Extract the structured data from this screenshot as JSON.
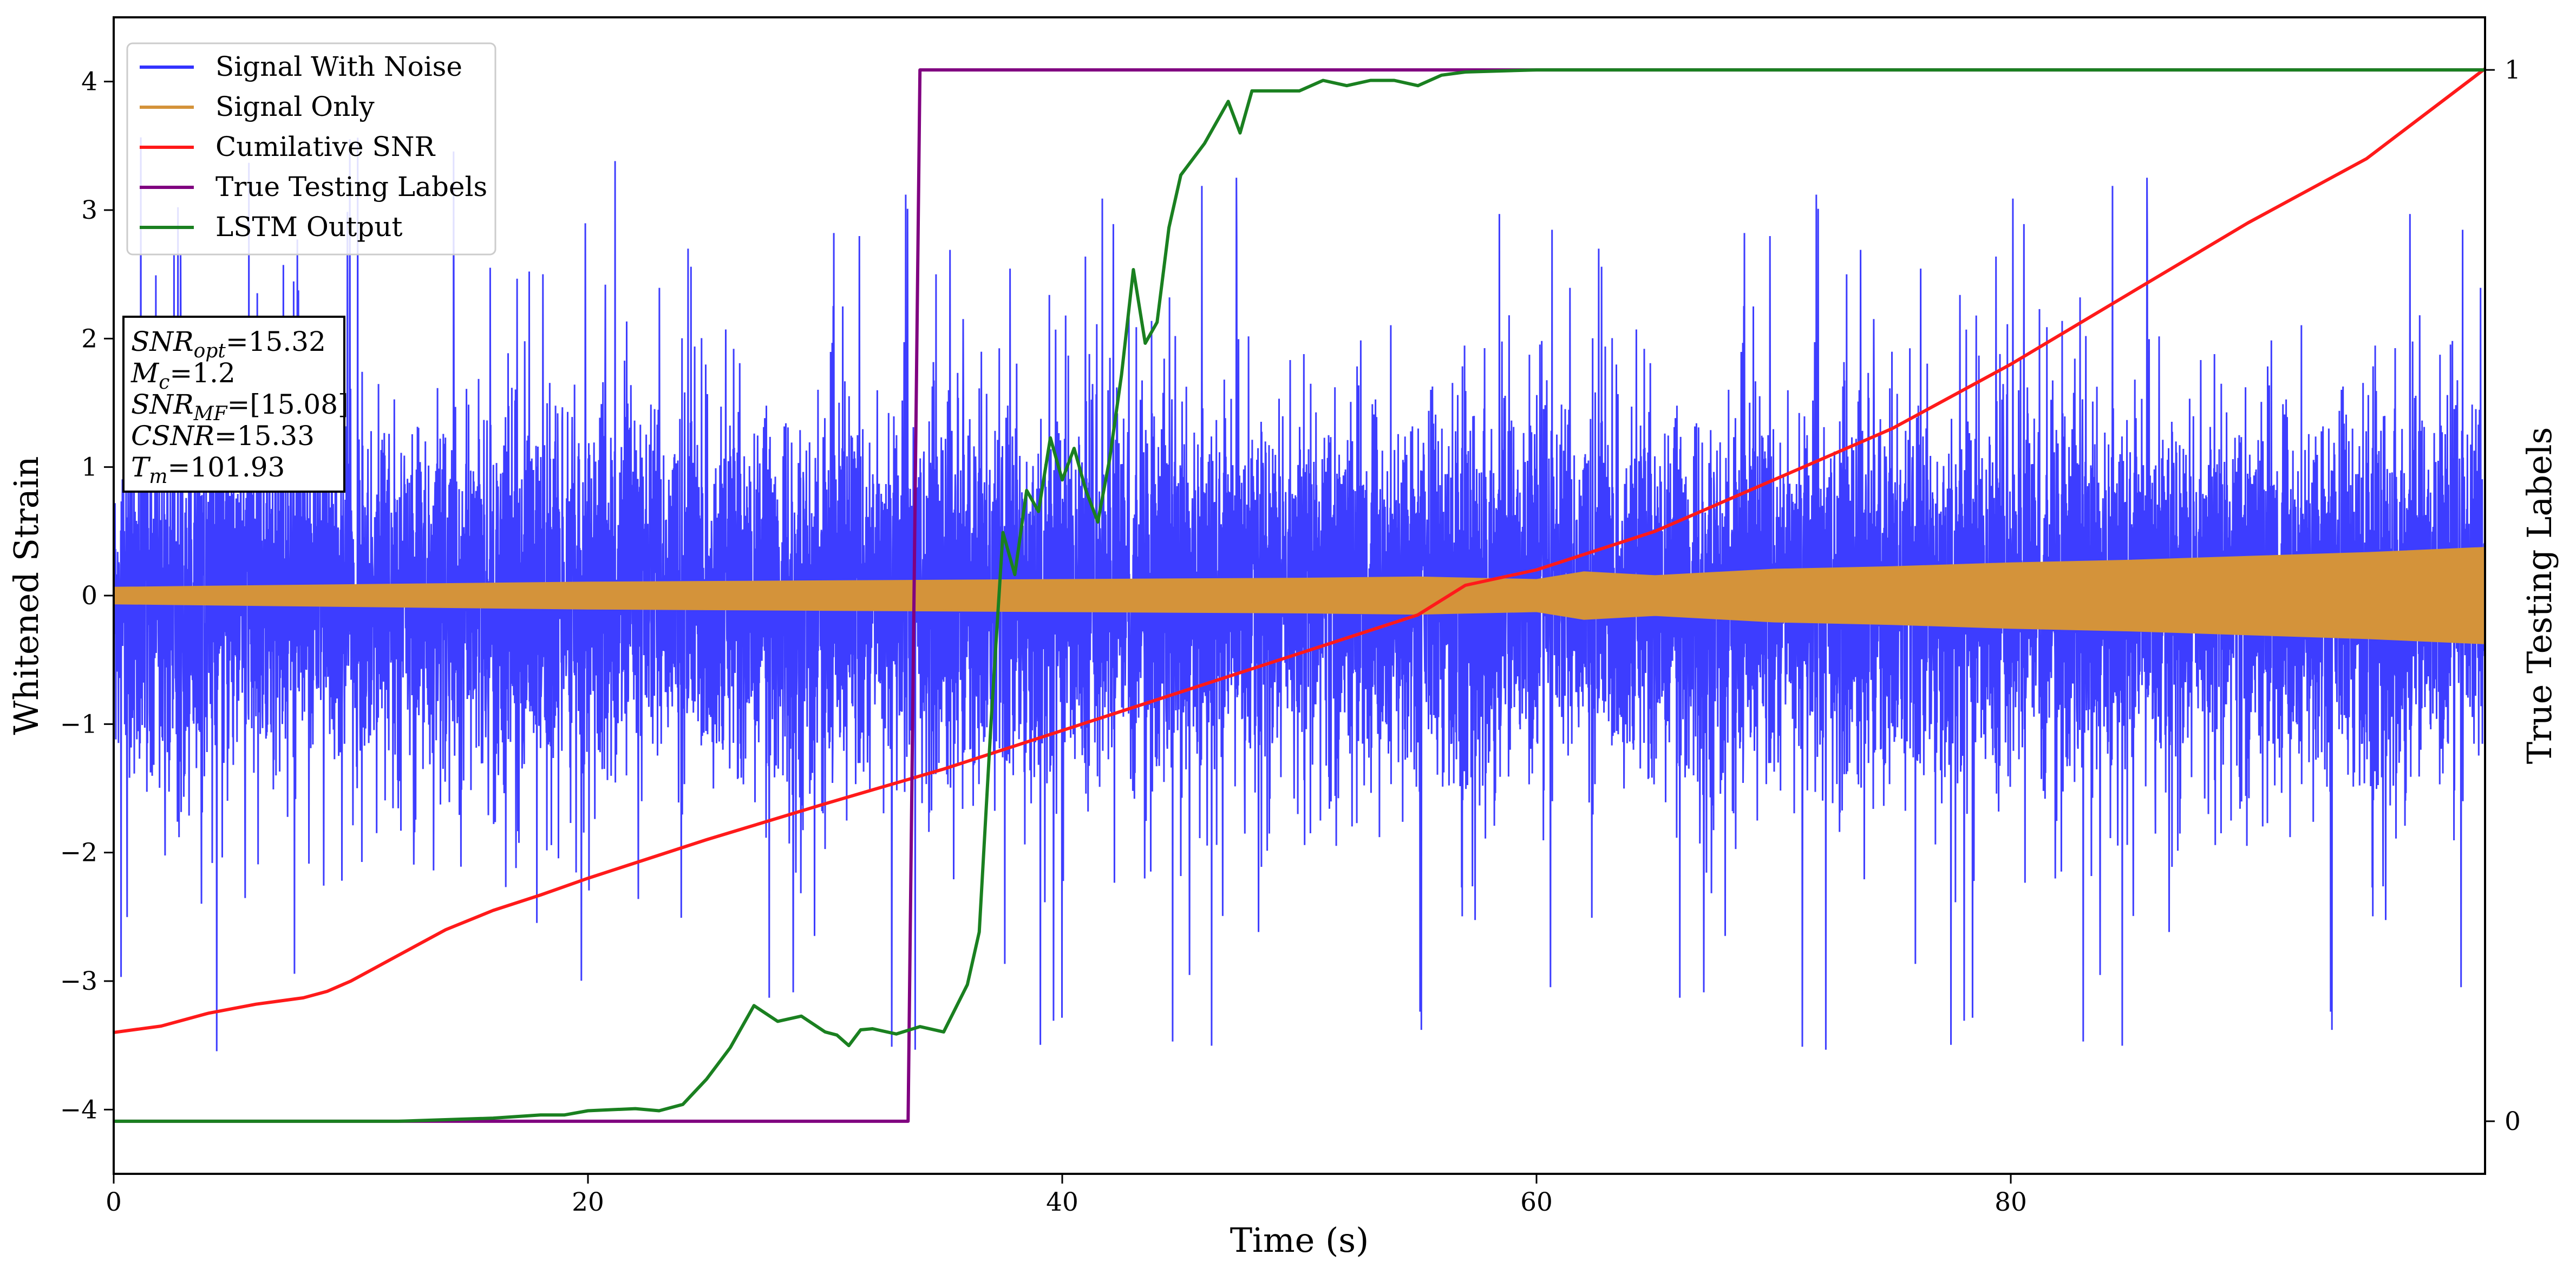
{
  "chart_data": {
    "type": "line",
    "xlabel": "Time (s)",
    "ylabel": "Whitened Strain",
    "y2label": "True Testing Labels",
    "xlim": [
      0,
      100
    ],
    "ylim": [
      -4.5,
      4.5
    ],
    "y2lim": [
      -0.05,
      1.05
    ],
    "xticks": [
      0,
      20,
      40,
      60,
      80
    ],
    "yticks": [
      -4,
      -3,
      -2,
      -1,
      0,
      1,
      2,
      3,
      4
    ],
    "y2ticks": [
      0,
      1
    ],
    "grid": false,
    "legend_placement": "top-left",
    "colors": {
      "noise": "#3333ff",
      "signal": "#d4933a",
      "csnr": "#ff1a1a",
      "labels": "#800080",
      "lstm": "#1a8020"
    },
    "series": [
      {
        "name": "Signal With Noise",
        "axis": "left",
        "style": "dense-noise",
        "description_values": {
          "band_upper_typ": 1.4,
          "band_lower_typ": -1.4,
          "spike_max": 4.1,
          "spike_min": -3.8
        }
      },
      {
        "name": "Signal Only",
        "axis": "left",
        "style": "envelope",
        "x": [
          0,
          10,
          20,
          30,
          40,
          50,
          55,
          60,
          62,
          65,
          70,
          75,
          80,
          85,
          90,
          95,
          100
        ],
        "values": [
          0.06,
          0.08,
          0.1,
          0.11,
          0.12,
          0.13,
          0.14,
          0.12,
          0.18,
          0.15,
          0.2,
          0.22,
          0.25,
          0.27,
          0.3,
          0.33,
          0.37
        ]
      },
      {
        "name": "Cumilative SNR",
        "axis": "left",
        "x": [
          0,
          2,
          4,
          6,
          8,
          9,
          10,
          12,
          14,
          16,
          18,
          20,
          25,
          30,
          35,
          40,
          45,
          50,
          55,
          57,
          60,
          65,
          70,
          75,
          80,
          85,
          90,
          95,
          100
        ],
        "values": [
          -3.4,
          -3.35,
          -3.25,
          -3.18,
          -3.13,
          -3.08,
          -3.0,
          -2.8,
          -2.6,
          -2.45,
          -2.33,
          -2.2,
          -1.9,
          -1.62,
          -1.35,
          -1.05,
          -0.75,
          -0.45,
          -0.15,
          0.08,
          0.2,
          0.5,
          0.9,
          1.3,
          1.8,
          2.35,
          2.9,
          3.4,
          4.1
        ]
      },
      {
        "name": "True Testing Labels",
        "axis": "right",
        "x": [
          0,
          33.5,
          34.0,
          100
        ],
        "values": [
          0,
          0,
          1,
          1
        ]
      },
      {
        "name": "LSTM Output",
        "axis": "right",
        "x": [
          0,
          12,
          16,
          18,
          19,
          20,
          22,
          23,
          24,
          25,
          26,
          27,
          28,
          29,
          30,
          30.5,
          31,
          31.5,
          32,
          33,
          34,
          35,
          36,
          36.5,
          37,
          37.5,
          38,
          38.5,
          39,
          39.5,
          40,
          40.5,
          41,
          41.5,
          42,
          42.5,
          43,
          43.5,
          44,
          44.5,
          45,
          46,
          47,
          47.5,
          48,
          49,
          50,
          51,
          52,
          53,
          54,
          55,
          56,
          57,
          60,
          65,
          70,
          100
        ],
        "values": [
          0,
          0,
          0.003,
          0.006,
          0.006,
          0.01,
          0.012,
          0.01,
          0.016,
          0.04,
          0.07,
          0.11,
          0.095,
          0.1,
          0.085,
          0.082,
          0.072,
          0.087,
          0.088,
          0.083,
          0.09,
          0.085,
          0.13,
          0.18,
          0.38,
          0.56,
          0.52,
          0.6,
          0.58,
          0.65,
          0.61,
          0.64,
          0.6,
          0.57,
          0.63,
          0.71,
          0.81,
          0.74,
          0.76,
          0.85,
          0.9,
          0.93,
          0.97,
          0.94,
          0.98,
          0.98,
          0.98,
          0.99,
          0.985,
          0.99,
          0.99,
          0.985,
          0.995,
          0.998,
          1.0,
          1.0,
          1.0,
          1.0
        ]
      }
    ],
    "info_box": [
      {
        "name": "SNR",
        "sub": "opt",
        "value": "=15.32"
      },
      {
        "name": "M",
        "sub": "c",
        "value": "=1.2"
      },
      {
        "name": "SNR",
        "sub": "MF",
        "value": "=[15.08]"
      },
      {
        "name": "CSNR",
        "sub": "",
        "value": "=15.33"
      },
      {
        "name": "T",
        "sub": "m",
        "value": "=101.93"
      }
    ]
  }
}
